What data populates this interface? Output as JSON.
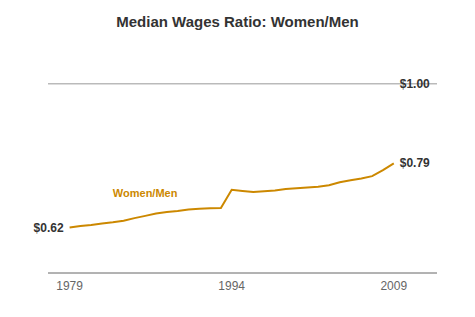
{
  "chart_data": {
    "type": "line",
    "title": "Median Wages Ratio: Women/Men",
    "x": [
      1979,
      1980,
      1981,
      1982,
      1983,
      1984,
      1985,
      1986,
      1987,
      1988,
      1989,
      1990,
      1991,
      1992,
      1993,
      1994,
      1995,
      1996,
      1997,
      1998,
      1999,
      2000,
      2001,
      2002,
      2003,
      2004,
      2005,
      2006,
      2007,
      2008,
      2009
    ],
    "values": [
      0.62,
      0.624,
      0.627,
      0.631,
      0.634,
      0.638,
      0.645,
      0.651,
      0.657,
      0.661,
      0.664,
      0.668,
      0.67,
      0.671,
      0.672,
      0.72,
      0.717,
      0.714,
      0.716,
      0.718,
      0.722,
      0.724,
      0.726,
      0.728,
      0.732,
      0.74,
      0.745,
      0.75,
      0.756,
      0.772,
      0.79
    ],
    "color": "#CC8800",
    "xlim": [
      1977,
      2013
    ],
    "xticks": [
      1979,
      1994,
      2009
    ],
    "ylim": [
      0.5,
      1.1
    ],
    "tick_labels": "x",
    "grid": false,
    "reference_y": 1.0,
    "annotations": [
      {
        "text": "$0.62",
        "x": 1979,
        "y": 0.62
      },
      {
        "text": "$0.79",
        "x": 2009,
        "y": 0.79
      },
      {
        "text": "$1.00",
        "x": 2009,
        "y": 1.0
      },
      {
        "text": "Women/Men",
        "x": 1983,
        "y": 0.695,
        "color": "#CC8800"
      }
    ]
  }
}
